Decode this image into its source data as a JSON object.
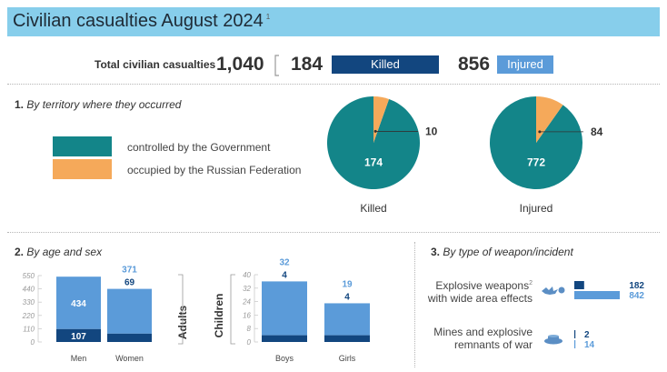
{
  "title": "Civilian casualties August 2024",
  "title_footnote": "1",
  "summary": {
    "label": "Total civilian casualties",
    "total": "1,040",
    "killed": "184",
    "killed_label": "Killed",
    "injured": "856",
    "injured_label": "Injured"
  },
  "colors": {
    "government": "#138589",
    "occupied": "#f5a95a",
    "killed": "#12467f",
    "injured": "#5b9bd9",
    "title_bar": "#87ceeb"
  },
  "section1": {
    "number": "1.",
    "title": "By territory where they occurred",
    "legend": [
      "controlled by the Government",
      "occupied by the Russian Federation"
    ]
  },
  "section2": {
    "number": "2.",
    "title": "By age and sex",
    "adults_label": "Adults",
    "children_label": "Children"
  },
  "section3": {
    "number": "3.",
    "title": "By type of weapon/incident",
    "weapons": [
      {
        "label_line1": "Explosive weapons",
        "footnote": "2",
        "label_line2": "with wide area effects",
        "killed": "182",
        "injured": "842"
      },
      {
        "label_line1": "Mines and explosive",
        "label_line2": "remnants of war",
        "killed": "2",
        "injured": "14"
      }
    ]
  },
  "chart_data": [
    {
      "type": "pie",
      "title": "Killed",
      "slices": [
        {
          "label": "controlled by the Government",
          "value": 174
        },
        {
          "label": "occupied by the Russian Federation",
          "value": 10
        }
      ]
    },
    {
      "type": "pie",
      "title": "Injured",
      "slices": [
        {
          "label": "controlled by the Government",
          "value": 772
        },
        {
          "label": "occupied by the Russian Federation",
          "value": 84
        }
      ]
    },
    {
      "type": "bar",
      "title": "Adults",
      "categories": [
        "Men",
        "Women"
      ],
      "series": [
        {
          "name": "Killed",
          "values": [
            107,
            69
          ]
        },
        {
          "name": "Injured",
          "values": [
            434,
            371
          ]
        }
      ],
      "yticks": [
        0,
        110,
        220,
        330,
        440,
        550
      ],
      "ylim": [
        0,
        550
      ]
    },
    {
      "type": "bar",
      "title": "Children",
      "categories": [
        "Boys",
        "Girls"
      ],
      "series": [
        {
          "name": "Killed",
          "values": [
            4,
            4
          ]
        },
        {
          "name": "Injured",
          "values": [
            32,
            19
          ]
        }
      ],
      "yticks": [
        0,
        8,
        16,
        24,
        32,
        40
      ],
      "ylim": [
        0,
        40
      ]
    },
    {
      "type": "bar",
      "title": "By type of weapon/incident",
      "categories": [
        "Explosive weapons with wide area effects",
        "Mines and explosive remnants of war"
      ],
      "series": [
        {
          "name": "Killed",
          "values": [
            182,
            2
          ]
        },
        {
          "name": "Injured",
          "values": [
            842,
            14
          ]
        }
      ]
    }
  ]
}
